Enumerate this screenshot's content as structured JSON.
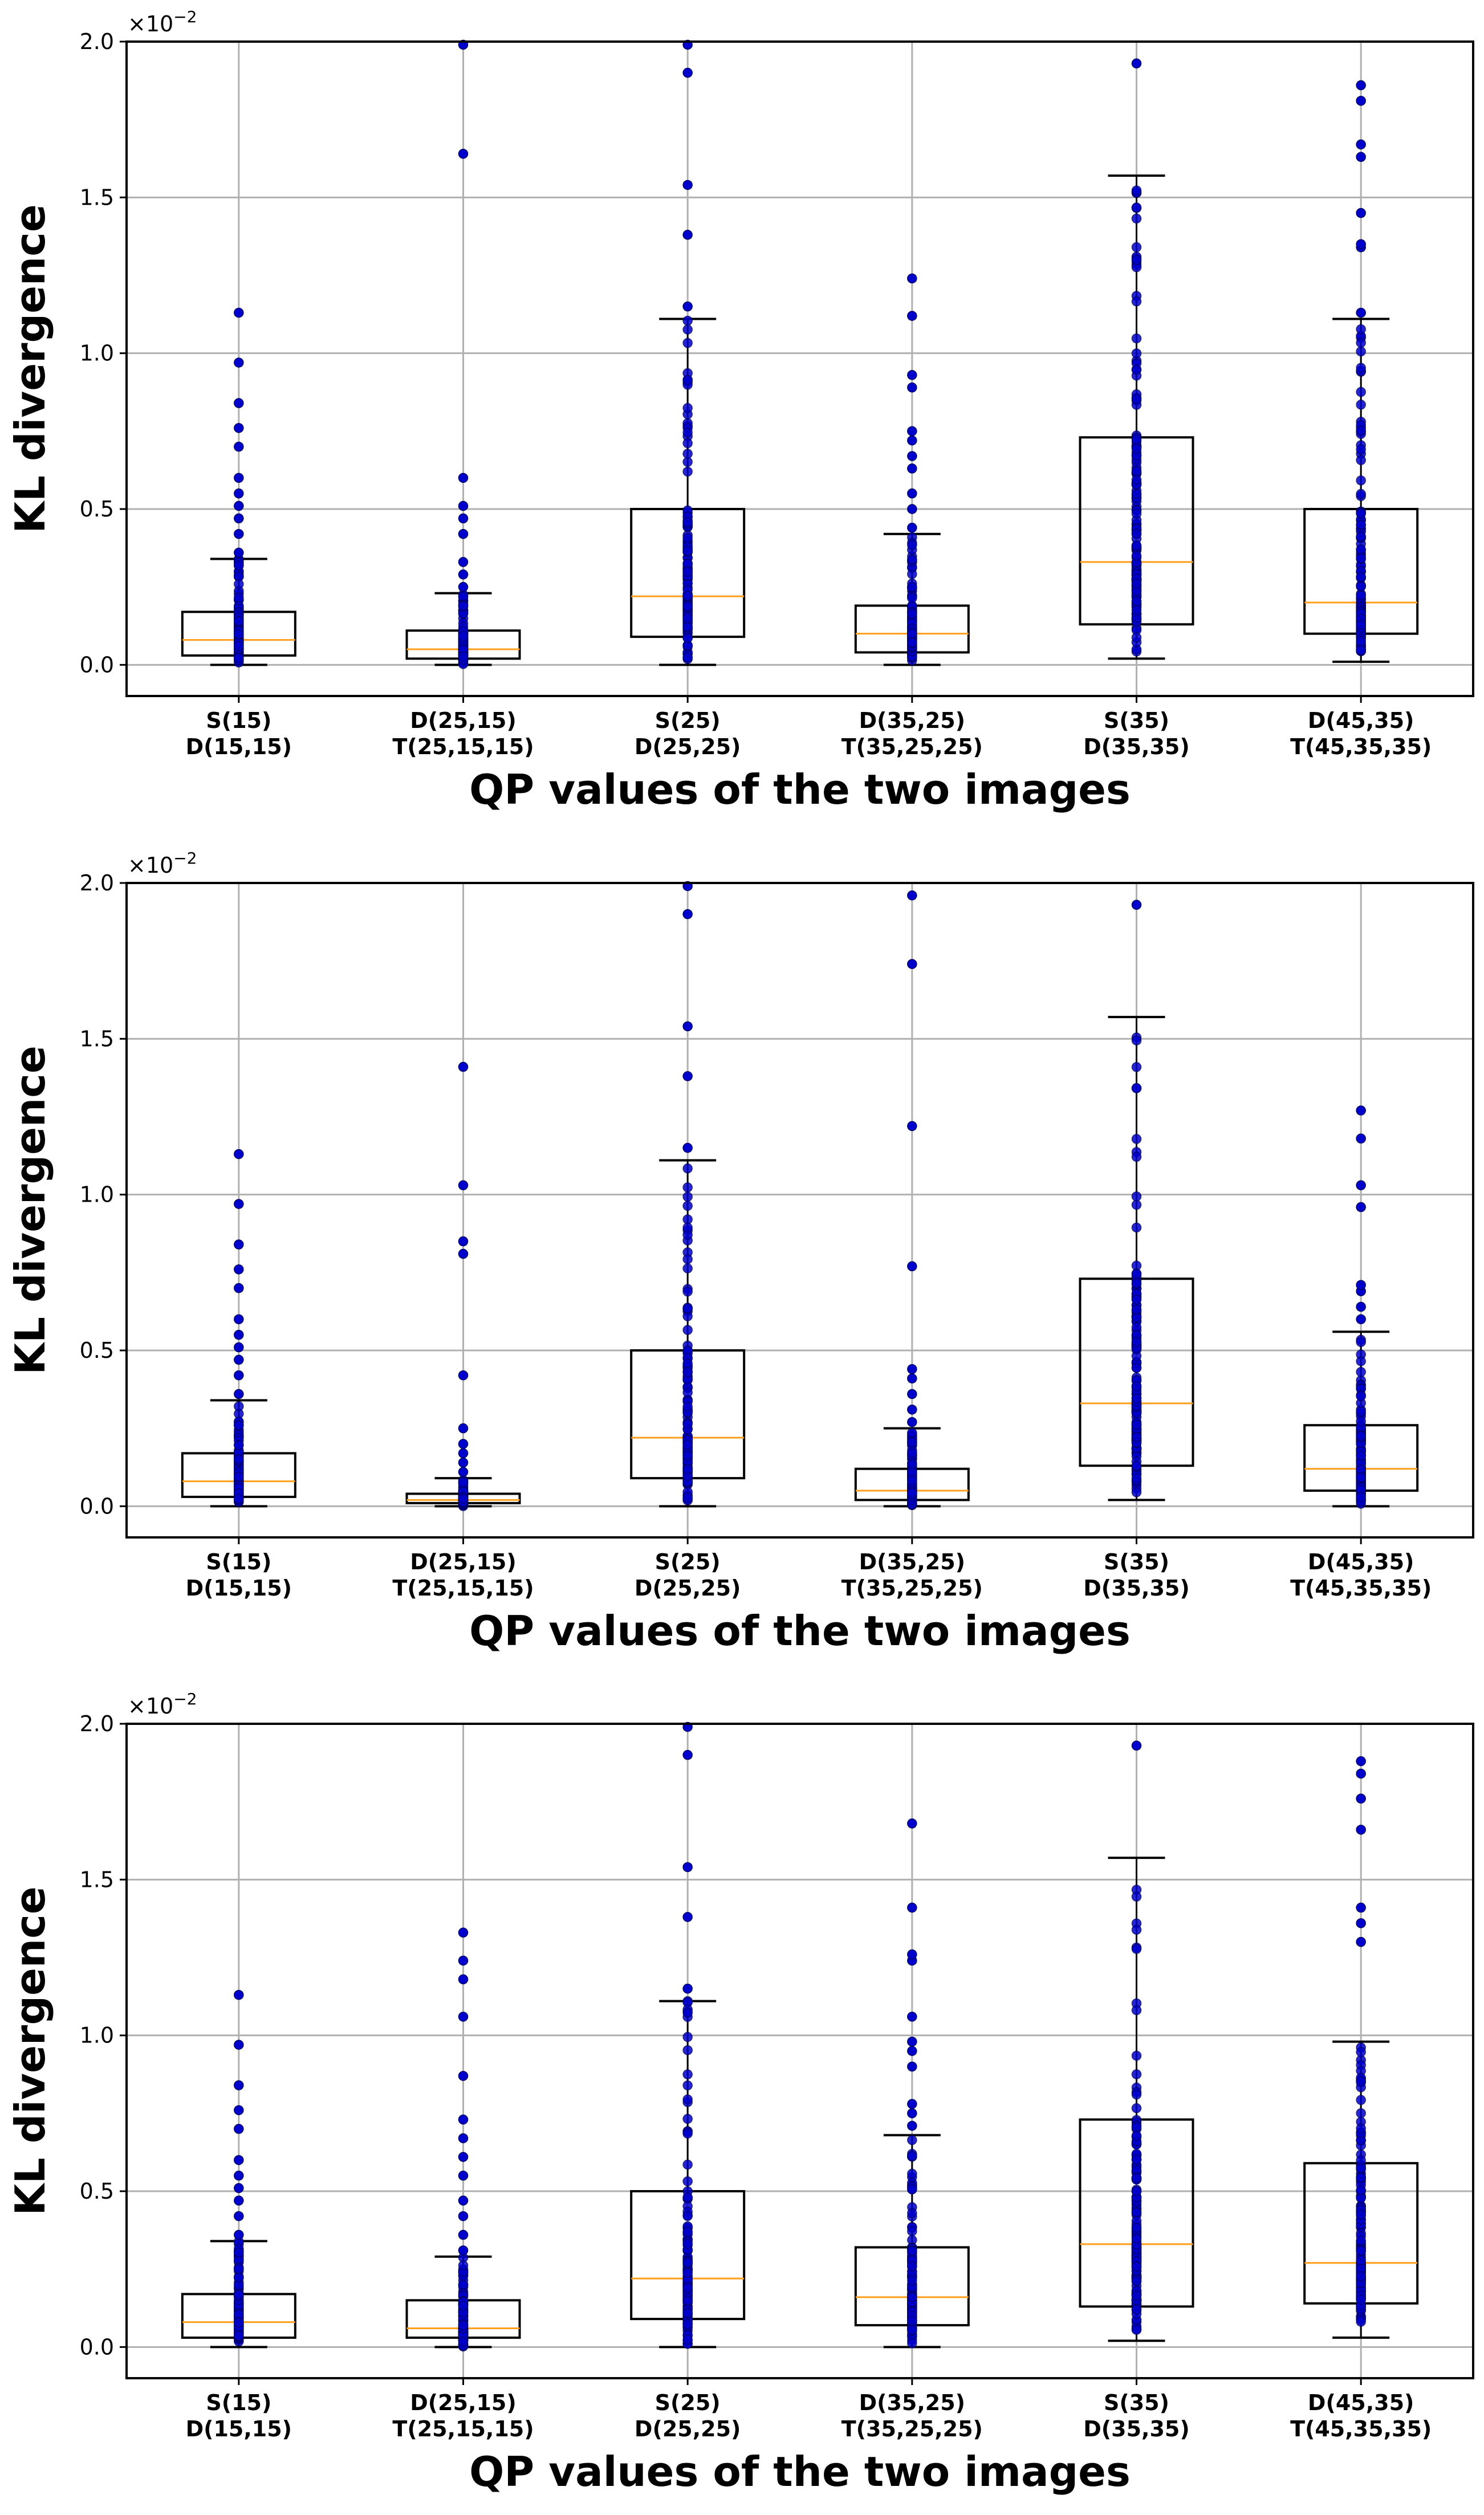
{
  "chart_data": [
    {
      "type": "box",
      "categories": [
        [
          "S(15)",
          "D(15,15)"
        ],
        [
          "D(25,15)",
          "T(25,15,15)"
        ],
        [
          "S(25)",
          "D(25,25)"
        ],
        [
          "D(35,25)",
          "T(35,25,25)"
        ],
        [
          "S(35)",
          "D(35,35)"
        ],
        [
          "D(45,35)",
          "T(45,35,35)"
        ]
      ],
      "xlabel": "QP values of the two images",
      "ylabel": "KL divergence",
      "y_multiplier": "×10",
      "y_multiplier_exp": "−2",
      "ylim": [
        -0.1,
        2.0
      ],
      "yticks": [
        0.0,
        0.5,
        1.0,
        1.5,
        2.0
      ],
      "ytick_labels": [
        "0.0",
        "0.5",
        "1.0",
        "1.5",
        "2.0"
      ],
      "grid": true,
      "boxes": [
        {
          "q1": 0.03,
          "median": 0.08,
          "q3": 0.17,
          "whisker_low": 0.0,
          "whisker_high": 0.34,
          "outliers": [
            0.36,
            0.42,
            0.47,
            0.51,
            0.55,
            0.6,
            0.7,
            0.76,
            0.84,
            0.97,
            1.13
          ]
        },
        {
          "q1": 0.02,
          "median": 0.05,
          "q3": 0.11,
          "whisker_low": 0.0,
          "whisker_high": 0.23,
          "outliers": [
            0.25,
            0.29,
            0.33,
            0.42,
            0.47,
            0.51,
            0.6,
            1.64,
            1.99
          ]
        },
        {
          "q1": 0.09,
          "median": 0.22,
          "q3": 0.5,
          "whisker_low": 0.0,
          "whisker_high": 1.11,
          "outliers": [
            1.15,
            1.38,
            1.54,
            1.9,
            1.99
          ]
        },
        {
          "q1": 0.04,
          "median": 0.1,
          "q3": 0.19,
          "whisker_low": 0.0,
          "whisker_high": 0.42,
          "outliers": [
            0.44,
            0.5,
            0.55,
            0.63,
            0.67,
            0.72,
            0.75,
            0.89,
            0.93,
            1.12,
            1.24
          ]
        },
        {
          "q1": 0.13,
          "median": 0.33,
          "q3": 0.73,
          "whisker_low": 0.02,
          "whisker_high": 1.57,
          "outliers": [
            1.93
          ]
        },
        {
          "q1": 0.1,
          "median": 0.2,
          "q3": 0.5,
          "whisker_low": 0.01,
          "whisker_high": 1.11,
          "outliers": [
            1.13,
            1.34,
            1.35,
            1.45,
            1.63,
            1.67,
            1.81,
            1.86
          ]
        }
      ]
    },
    {
      "type": "box",
      "categories": [
        [
          "S(15)",
          "D(15,15)"
        ],
        [
          "D(25,15)",
          "T(25,15,15)"
        ],
        [
          "S(25)",
          "D(25,25)"
        ],
        [
          "D(35,25)",
          "T(35,25,25)"
        ],
        [
          "S(35)",
          "D(35,35)"
        ],
        [
          "D(45,35)",
          "T(45,35,35)"
        ]
      ],
      "xlabel": "QP values of the two images",
      "ylabel": "KL divergence",
      "y_multiplier": "×10",
      "y_multiplier_exp": "−2",
      "ylim": [
        -0.1,
        2.0
      ],
      "yticks": [
        0.0,
        0.5,
        1.0,
        1.5,
        2.0
      ],
      "ytick_labels": [
        "0.0",
        "0.5",
        "1.0",
        "1.5",
        "2.0"
      ],
      "grid": true,
      "boxes": [
        {
          "q1": 0.03,
          "median": 0.08,
          "q3": 0.17,
          "whisker_low": 0.0,
          "whisker_high": 0.34,
          "outliers": [
            0.36,
            0.42,
            0.47,
            0.51,
            0.55,
            0.6,
            0.7,
            0.76,
            0.84,
            0.97,
            1.13
          ]
        },
        {
          "q1": 0.01,
          "median": 0.02,
          "q3": 0.04,
          "whisker_low": 0.0,
          "whisker_high": 0.09,
          "outliers": [
            0.11,
            0.14,
            0.17,
            0.2,
            0.25,
            0.42,
            0.81,
            0.85,
            1.03,
            1.41
          ]
        },
        {
          "q1": 0.09,
          "median": 0.22,
          "q3": 0.5,
          "whisker_low": 0.0,
          "whisker_high": 1.11,
          "outliers": [
            1.15,
            1.38,
            1.54,
            1.9,
            1.99
          ]
        },
        {
          "q1": 0.02,
          "median": 0.05,
          "q3": 0.12,
          "whisker_low": 0.0,
          "whisker_high": 0.25,
          "outliers": [
            0.27,
            0.31,
            0.36,
            0.41,
            0.44,
            0.77,
            1.22,
            1.74,
            1.96
          ]
        },
        {
          "q1": 0.13,
          "median": 0.33,
          "q3": 0.73,
          "whisker_low": 0.02,
          "whisker_high": 1.57,
          "outliers": [
            1.93
          ]
        },
        {
          "q1": 0.05,
          "median": 0.12,
          "q3": 0.26,
          "whisker_low": 0.0,
          "whisker_high": 0.56,
          "outliers": [
            0.6,
            0.64,
            0.69,
            0.71,
            0.96,
            1.03,
            1.18,
            1.27
          ]
        }
      ]
    },
    {
      "type": "box",
      "categories": [
        [
          "S(15)",
          "D(15,15)"
        ],
        [
          "D(25,15)",
          "T(25,15,15)"
        ],
        [
          "S(25)",
          "D(25,25)"
        ],
        [
          "D(35,25)",
          "T(35,25,25)"
        ],
        [
          "S(35)",
          "D(35,35)"
        ],
        [
          "D(45,35)",
          "T(45,35,35)"
        ]
      ],
      "xlabel": "QP values of the two images",
      "ylabel": "KL divergence",
      "y_multiplier": "×10",
      "y_multiplier_exp": "−2",
      "ylim": [
        -0.1,
        2.0
      ],
      "yticks": [
        0.0,
        0.5,
        1.0,
        1.5,
        2.0
      ],
      "ytick_labels": [
        "0.0",
        "0.5",
        "1.0",
        "1.5",
        "2.0"
      ],
      "grid": true,
      "boxes": [
        {
          "q1": 0.03,
          "median": 0.08,
          "q3": 0.17,
          "whisker_low": 0.0,
          "whisker_high": 0.34,
          "outliers": [
            0.36,
            0.42,
            0.47,
            0.51,
            0.55,
            0.6,
            0.7,
            0.76,
            0.84,
            0.97,
            1.13
          ]
        },
        {
          "q1": 0.03,
          "median": 0.06,
          "q3": 0.15,
          "whisker_low": 0.0,
          "whisker_high": 0.29,
          "outliers": [
            0.31,
            0.36,
            0.42,
            0.47,
            0.55,
            0.61,
            0.67,
            0.73,
            0.87,
            1.06,
            1.18,
            1.24,
            1.33
          ]
        },
        {
          "q1": 0.09,
          "median": 0.22,
          "q3": 0.5,
          "whisker_low": 0.0,
          "whisker_high": 1.11,
          "outliers": [
            1.15,
            1.38,
            1.54,
            1.9,
            1.99
          ]
        },
        {
          "q1": 0.07,
          "median": 0.16,
          "q3": 0.32,
          "whisker_low": 0.0,
          "whisker_high": 0.68,
          "outliers": [
            0.71,
            0.75,
            0.78,
            0.9,
            0.95,
            0.98,
            1.06,
            1.24,
            1.26,
            1.41,
            1.68
          ]
        },
        {
          "q1": 0.13,
          "median": 0.33,
          "q3": 0.73,
          "whisker_low": 0.02,
          "whisker_high": 1.57,
          "outliers": [
            1.93
          ]
        },
        {
          "q1": 0.14,
          "median": 0.27,
          "q3": 0.59,
          "whisker_low": 0.03,
          "whisker_high": 0.98,
          "outliers": [
            1.3,
            1.36,
            1.41,
            1.66,
            1.76,
            1.84,
            1.88
          ]
        }
      ]
    }
  ],
  "colors": {
    "box_edge": "#000000",
    "median": "#ff9f1c",
    "points": "#0000cc",
    "grid": "#b0b0b0"
  }
}
